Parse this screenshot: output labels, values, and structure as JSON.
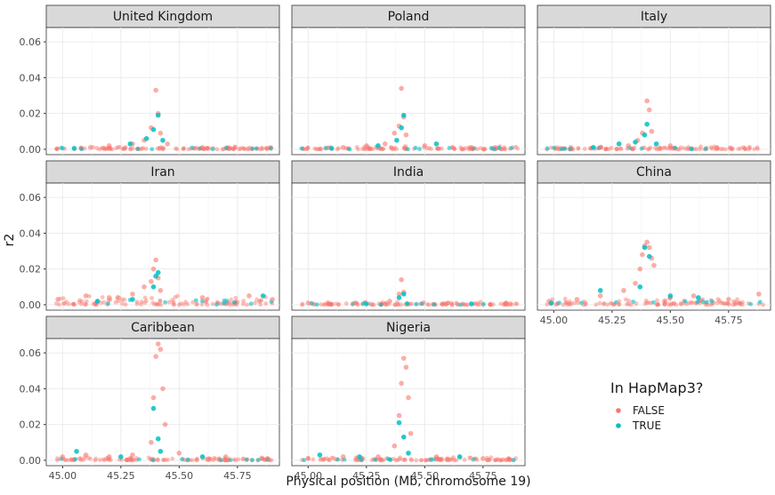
{
  "chart_data": {
    "type": "scatter",
    "title": "",
    "xlabel": "Physical position (Mb, chromosome 19)",
    "ylabel": "r2",
    "xlim": [
      44.93,
      45.93
    ],
    "ylim": [
      -0.003,
      0.068
    ],
    "x_ticks": [
      45.0,
      45.25,
      45.5,
      45.75
    ],
    "x_tick_labels": [
      "45.00",
      "45.25",
      "45.50",
      "45.75"
    ],
    "y_ticks": [
      0.0,
      0.02,
      0.04,
      0.06
    ],
    "y_tick_labels": [
      "0.00",
      "0.02",
      "0.04",
      "0.06"
    ],
    "grid": true,
    "facet_layout": "3 columns, 3 rows, shared axes",
    "legend": {
      "title": "In HapMap3?",
      "position": "bottom-right",
      "entries": [
        {
          "label": "FALSE",
          "color": "#F8766D"
        },
        {
          "label": "TRUE",
          "color": "#00BFC4"
        }
      ]
    },
    "panels": [
      {
        "title": "United Kingdom",
        "max_r2": 0.033,
        "series": [
          {
            "name": "FALSE",
            "points": [
              [
                45.12,
                0.001
              ],
              [
                45.2,
                0.002
              ],
              [
                45.3,
                0.003
              ],
              [
                45.35,
                0.005
              ],
              [
                45.38,
                0.012
              ],
              [
                45.4,
                0.033
              ],
              [
                45.41,
                0.02
              ],
              [
                45.42,
                0.009
              ],
              [
                45.45,
                0.003
              ],
              [
                45.6,
                0.001
              ],
              [
                45.8,
                0.0005
              ]
            ]
          },
          {
            "name": "TRUE",
            "points": [
              [
                45.05,
                0.0005
              ],
              [
                45.29,
                0.003
              ],
              [
                45.36,
                0.006
              ],
              [
                45.39,
                0.011
              ],
              [
                45.41,
                0.019
              ],
              [
                45.43,
                0.005
              ]
            ]
          }
        ]
      },
      {
        "title": "Poland",
        "max_r2": 0.034,
        "series": [
          {
            "name": "FALSE",
            "points": [
              [
                45.15,
                0.001
              ],
              [
                45.25,
                0.002
              ],
              [
                45.33,
                0.003
              ],
              [
                45.37,
                0.009
              ],
              [
                45.39,
                0.013
              ],
              [
                45.4,
                0.034
              ],
              [
                45.41,
                0.018
              ],
              [
                45.42,
                0.008
              ],
              [
                45.5,
                0.002
              ],
              [
                45.7,
                0.001
              ]
            ]
          },
          {
            "name": "TRUE",
            "points": [
              [
                45.1,
                0.0005
              ],
              [
                45.3,
                0.002
              ],
              [
                45.38,
                0.005
              ],
              [
                45.4,
                0.012
              ],
              [
                45.41,
                0.019
              ],
              [
                45.55,
                0.003
              ]
            ]
          }
        ]
      },
      {
        "title": "Italy",
        "max_r2": 0.027,
        "series": [
          {
            "name": "FALSE",
            "points": [
              [
                45.2,
                0.001
              ],
              [
                45.32,
                0.002
              ],
              [
                45.36,
                0.005
              ],
              [
                45.38,
                0.009
              ],
              [
                45.4,
                0.027
              ],
              [
                45.41,
                0.022
              ],
              [
                45.42,
                0.01
              ],
              [
                45.5,
                0.002
              ],
              [
                45.7,
                0.001
              ]
            ]
          },
          {
            "name": "TRUE",
            "points": [
              [
                45.17,
                0.001
              ],
              [
                45.28,
                0.003
              ],
              [
                45.35,
                0.004
              ],
              [
                45.39,
                0.008
              ],
              [
                45.4,
                0.014
              ],
              [
                45.44,
                0.003
              ]
            ]
          }
        ]
      },
      {
        "title": "Iran",
        "max_r2": 0.025,
        "series": [
          {
            "name": "FALSE",
            "points": [
              [
                44.98,
                0.003
              ],
              [
                45.1,
                0.005
              ],
              [
                45.2,
                0.004
              ],
              [
                45.3,
                0.006
              ],
              [
                45.35,
                0.01
              ],
              [
                45.38,
                0.013
              ],
              [
                45.39,
                0.02
              ],
              [
                45.4,
                0.025
              ],
              [
                45.41,
                0.015
              ],
              [
                45.42,
                0.008
              ],
              [
                45.6,
                0.004
              ],
              [
                45.8,
                0.005
              ],
              [
                45.9,
                0.003
              ]
            ]
          },
          {
            "name": "TRUE",
            "points": [
              [
                45.15,
                0.002
              ],
              [
                45.3,
                0.003
              ],
              [
                45.39,
                0.01
              ],
              [
                45.4,
                0.016
              ],
              [
                45.41,
                0.018
              ],
              [
                45.86,
                0.005
              ]
            ]
          }
        ]
      },
      {
        "title": "India",
        "max_r2": 0.014,
        "series": [
          {
            "name": "FALSE",
            "points": [
              [
                45.0,
                0.001
              ],
              [
                45.2,
                0.001
              ],
              [
                45.35,
                0.002
              ],
              [
                45.39,
                0.006
              ],
              [
                45.4,
                0.014
              ],
              [
                45.41,
                0.007
              ],
              [
                45.6,
                0.001
              ],
              [
                45.85,
                0.001
              ]
            ]
          },
          {
            "name": "TRUE",
            "points": [
              [
                45.25,
                0.0005
              ],
              [
                45.39,
                0.004
              ],
              [
                45.41,
                0.006
              ],
              [
                45.7,
                0.0005
              ]
            ]
          }
        ]
      },
      {
        "title": "China",
        "max_r2": 0.035,
        "series": [
          {
            "name": "FALSE",
            "points": [
              [
                44.98,
                0.002
              ],
              [
                45.1,
                0.003
              ],
              [
                45.2,
                0.005
              ],
              [
                45.3,
                0.008
              ],
              [
                45.35,
                0.012
              ],
              [
                45.37,
                0.02
              ],
              [
                45.38,
                0.028
              ],
              [
                45.39,
                0.033
              ],
              [
                45.4,
                0.035
              ],
              [
                45.41,
                0.032
              ],
              [
                45.42,
                0.026
              ],
              [
                45.43,
                0.022
              ],
              [
                45.5,
                0.004
              ],
              [
                45.6,
                0.005
              ],
              [
                45.75,
                0.003
              ],
              [
                45.88,
                0.006
              ]
            ]
          },
          {
            "name": "TRUE",
            "points": [
              [
                44.99,
                0.001
              ],
              [
                45.2,
                0.008
              ],
              [
                45.37,
                0.01
              ],
              [
                45.39,
                0.032
              ],
              [
                45.41,
                0.027
              ],
              [
                45.5,
                0.005
              ],
              [
                45.62,
                0.004
              ]
            ]
          }
        ]
      },
      {
        "title": "Caribbean",
        "max_r2": 0.065,
        "series": [
          {
            "name": "FALSE",
            "points": [
              [
                45.0,
                0.002
              ],
              [
                45.1,
                0.003
              ],
              [
                45.2,
                0.002
              ],
              [
                45.3,
                0.003
              ],
              [
                45.38,
                0.01
              ],
              [
                45.39,
                0.035
              ],
              [
                45.4,
                0.058
              ],
              [
                45.41,
                0.065
              ],
              [
                45.42,
                0.062
              ],
              [
                45.43,
                0.04
              ],
              [
                45.44,
                0.02
              ],
              [
                45.5,
                0.004
              ],
              [
                45.7,
                0.002
              ],
              [
                45.88,
                0.001
              ]
            ]
          },
          {
            "name": "TRUE",
            "points": [
              [
                45.06,
                0.005
              ],
              [
                45.25,
                0.002
              ],
              [
                45.39,
                0.029
              ],
              [
                45.41,
                0.012
              ],
              [
                45.42,
                0.005
              ],
              [
                45.6,
                0.002
              ]
            ]
          }
        ]
      },
      {
        "title": "Nigeria",
        "max_r2": 0.057,
        "series": [
          {
            "name": "FALSE",
            "points": [
              [
                45.0,
                0.001
              ],
              [
                45.15,
                0.002
              ],
              [
                45.3,
                0.002
              ],
              [
                45.37,
                0.008
              ],
              [
                45.39,
                0.025
              ],
              [
                45.4,
                0.043
              ],
              [
                45.41,
                0.057
              ],
              [
                45.42,
                0.052
              ],
              [
                45.43,
                0.035
              ],
              [
                45.44,
                0.015
              ],
              [
                45.55,
                0.002
              ],
              [
                45.75,
                0.001
              ]
            ]
          },
          {
            "name": "TRUE",
            "points": [
              [
                45.05,
                0.003
              ],
              [
                45.22,
                0.002
              ],
              [
                45.39,
                0.021
              ],
              [
                45.41,
                0.013
              ],
              [
                45.43,
                0.004
              ],
              [
                45.65,
                0.002
              ]
            ]
          }
        ]
      }
    ]
  }
}
